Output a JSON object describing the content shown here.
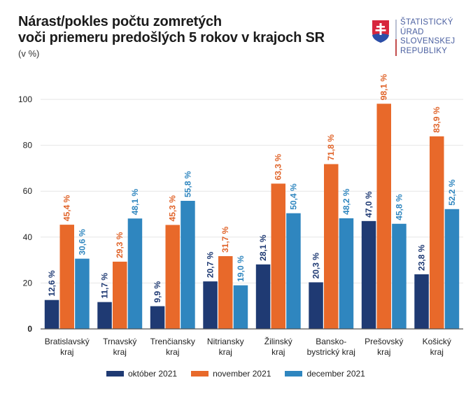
{
  "header": {
    "title_line1": "Nárast/pokles počtu zomretých",
    "title_line2": "voči priemeru predošlých 5 rokov v krajoch SR",
    "unit": "(v %)"
  },
  "logo": {
    "icon": "slovak-coat-of-arms-icon",
    "lines": [
      "ŠTATISTICKÝ",
      "ÚRAD",
      "SLOVENSKEJ",
      "REPUBLIKY"
    ]
  },
  "chart_data": {
    "type": "bar",
    "title": "Nárast/pokles počtu zomretých voči priemeru predošlých 5 rokov v krajoch SR",
    "subtitle": "(v %)",
    "xlabel": "",
    "ylabel": "",
    "ylim": [
      0,
      100
    ],
    "yticks": [
      0,
      20,
      40,
      60,
      80,
      100
    ],
    "grid": true,
    "legend_position": "bottom",
    "categories": [
      [
        "Bratislavský",
        "kraj"
      ],
      [
        "Trnavský",
        "kraj"
      ],
      [
        "Trenčiansky",
        "kraj"
      ],
      [
        "Nitriansky",
        "kraj"
      ],
      [
        "Žilinský",
        "kraj"
      ],
      [
        "Bansko-",
        "bystrický kraj"
      ],
      [
        "Prešovský",
        "kraj"
      ],
      [
        "Košický",
        "kraj"
      ]
    ],
    "series": [
      {
        "name": "október 2021",
        "color": "#1f3a73",
        "values": [
          12.6,
          11.7,
          9.9,
          20.7,
          28.1,
          20.3,
          47.0,
          23.8
        ],
        "labels": [
          "12,6 %",
          "11,7 %",
          "9,9 %",
          "20,7 %",
          "28,1 %",
          "20,3 %",
          "47,0 %",
          "23,8 %"
        ]
      },
      {
        "name": "november 2021",
        "color": "#e8692a",
        "values": [
          45.4,
          29.3,
          45.3,
          31.7,
          63.3,
          71.8,
          98.1,
          83.9
        ],
        "labels": [
          "45,4 %",
          "29,3 %",
          "45,3 %",
          "31,7 %",
          "63,3 %",
          "71,8 %",
          "98,1 %",
          "83,9 %"
        ]
      },
      {
        "name": "december 2021",
        "color": "#2f86bf",
        "values": [
          30.6,
          48.1,
          55.8,
          19.0,
          50.4,
          48.2,
          45.8,
          52.2
        ],
        "labels": [
          "30,6 %",
          "48,1 %",
          "55,8 %",
          "19,0 %",
          "50,4 %",
          "48,2 %",
          "45,8 %",
          "52,2 %"
        ]
      }
    ],
    "label_colors": [
      "#1f3a73",
      "#e0642a",
      "#2f86bf"
    ]
  }
}
